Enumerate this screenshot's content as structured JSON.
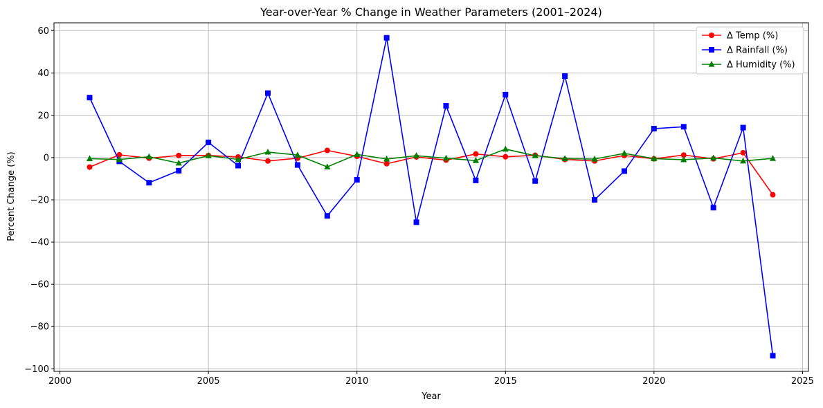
{
  "chart_data": {
    "type": "line",
    "title": "Year-over-Year % Change in Weather Parameters (2001–2024)",
    "xlabel": "Year",
    "ylabel": "Percent Change (%)",
    "xlim": [
      1999.8,
      2025.2
    ],
    "ylim": [
      -101.2,
      63.8
    ],
    "xticks": [
      2000,
      2005,
      2010,
      2015,
      2020,
      2025
    ],
    "yticks": [
      -100,
      -80,
      -60,
      -40,
      -20,
      0,
      20,
      40,
      60
    ],
    "grid": true,
    "legend_position": "top-right",
    "x": [
      2001,
      2002,
      2003,
      2004,
      2005,
      2006,
      2007,
      2008,
      2009,
      2010,
      2011,
      2012,
      2013,
      2014,
      2015,
      2016,
      2017,
      2018,
      2019,
      2020,
      2021,
      2022,
      2023,
      2024
    ],
    "series": [
      {
        "name": "Δ Temp (%)",
        "color": "#ff0000",
        "marker": "circle",
        "values": [
          -4.5,
          1.3,
          -0.3,
          1.0,
          1.0,
          0.3,
          -1.6,
          -0.3,
          3.4,
          0.6,
          -2.9,
          0.3,
          -1.2,
          1.7,
          0.4,
          1.1,
          -0.9,
          -1.6,
          1.0,
          -0.6,
          1.2,
          -0.6,
          2.3,
          -17.6
        ]
      },
      {
        "name": "Δ Rainfall (%)",
        "color": "#0000ff",
        "marker": "square",
        "values": [
          28.4,
          -1.8,
          -11.9,
          -6.2,
          7.2,
          -3.8,
          30.5,
          -3.5,
          -27.6,
          -10.5,
          56.7,
          -30.6,
          24.5,
          -10.8,
          29.8,
          -11.1,
          38.6,
          -20.0,
          -6.4,
          13.7,
          14.6,
          -23.7,
          14.2,
          -93.8
        ]
      },
      {
        "name": "Δ Humidity (%)",
        "color": "#008000",
        "marker": "triangle",
        "values": [
          -0.5,
          -0.9,
          0.4,
          -2.6,
          0.9,
          -0.9,
          2.6,
          1.2,
          -4.4,
          1.5,
          -0.7,
          0.9,
          -0.3,
          -1.4,
          4.0,
          0.9,
          -0.5,
          -0.7,
          2.0,
          -0.5,
          -1.0,
          -0.2,
          -1.6,
          -0.4
        ]
      }
    ]
  }
}
